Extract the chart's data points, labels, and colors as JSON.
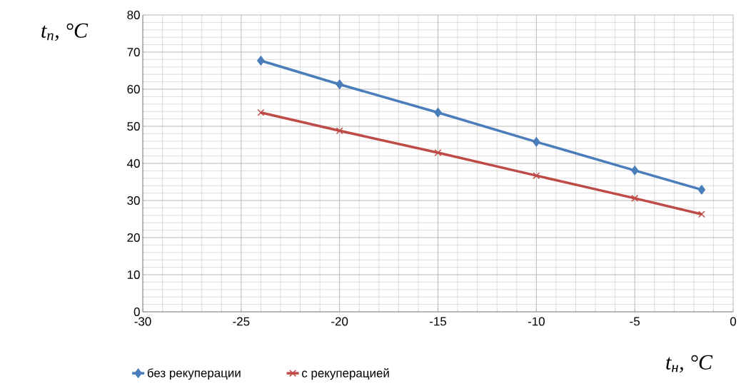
{
  "chart_data": {
    "type": "line",
    "xlabel": "t$_{н}$, °C",
    "ylabel": "t$_{п}$, °C",
    "xlim": [
      -30,
      0
    ],
    "xticks": [
      -30,
      -25,
      -20,
      -15,
      -10,
      -5,
      0
    ],
    "ylim": [
      0,
      80
    ],
    "yticks": [
      0,
      10,
      20,
      30,
      40,
      50,
      60,
      70,
      80
    ],
    "grid": true,
    "legend": "bottom",
    "series": [
      {
        "name": "без рекуперации",
        "color": "#4a7ebb",
        "marker": "diamond",
        "x": [
          -24,
          -20,
          -15,
          -10,
          -5,
          -1.6
        ],
        "values": [
          67.7,
          61.3,
          53.7,
          45.8,
          38.1,
          32.9
        ]
      },
      {
        "name": "с рекуперацией",
        "color": "#be4b48",
        "marker": "cross",
        "x": [
          -24,
          -20,
          -15,
          -10,
          -5,
          -1.6
        ],
        "values": [
          53.7,
          48.8,
          42.9,
          36.7,
          30.6,
          26.3
        ]
      }
    ]
  }
}
